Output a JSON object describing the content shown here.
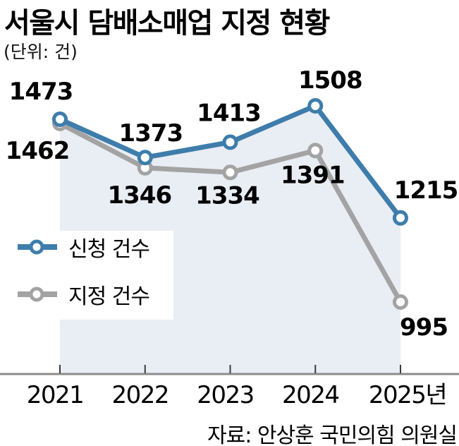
{
  "title": "서울시 담배소매업 지정 현황",
  "unit_label": "(단위: 건)",
  "source": "자료: 안상훈 국민의힘 의원실",
  "legend": {
    "items": [
      {
        "label": "신청 건수",
        "color": "#3e7dab"
      },
      {
        "label": "지정 건수",
        "color": "#a3a3a3"
      }
    ]
  },
  "colors": {
    "application_line": "#3e7dab",
    "designation_line": "#a3a3a3",
    "area_fill": "#e9edf4",
    "axis_line": "#8c8c8c",
    "tick": "#3a3a3a",
    "value_label": "#000000",
    "marker_center": "#ffffff"
  },
  "chart_data": {
    "type": "line",
    "title": "서울시 담배소매업 지정 현황",
    "unit": "건",
    "categories": [
      "2021",
      "2022",
      "2023",
      "2024",
      "2025년"
    ],
    "series": [
      {
        "name": "신청 건수",
        "color": "#3e7dab",
        "values": [
          1473,
          1373,
          1413,
          1508,
          1215
        ]
      },
      {
        "name": "지정 건수",
        "color": "#a3a3a3",
        "values": [
          1462,
          1346,
          1334,
          1391,
          995
        ]
      }
    ],
    "area_fill_under_series": "신청 건수",
    "markers": "open-circle",
    "data_labels_shown": true,
    "grid": false,
    "y_axis_shown": false,
    "legend_position": "middle-left",
    "x_axis": {
      "line": true,
      "ticks": true
    }
  }
}
